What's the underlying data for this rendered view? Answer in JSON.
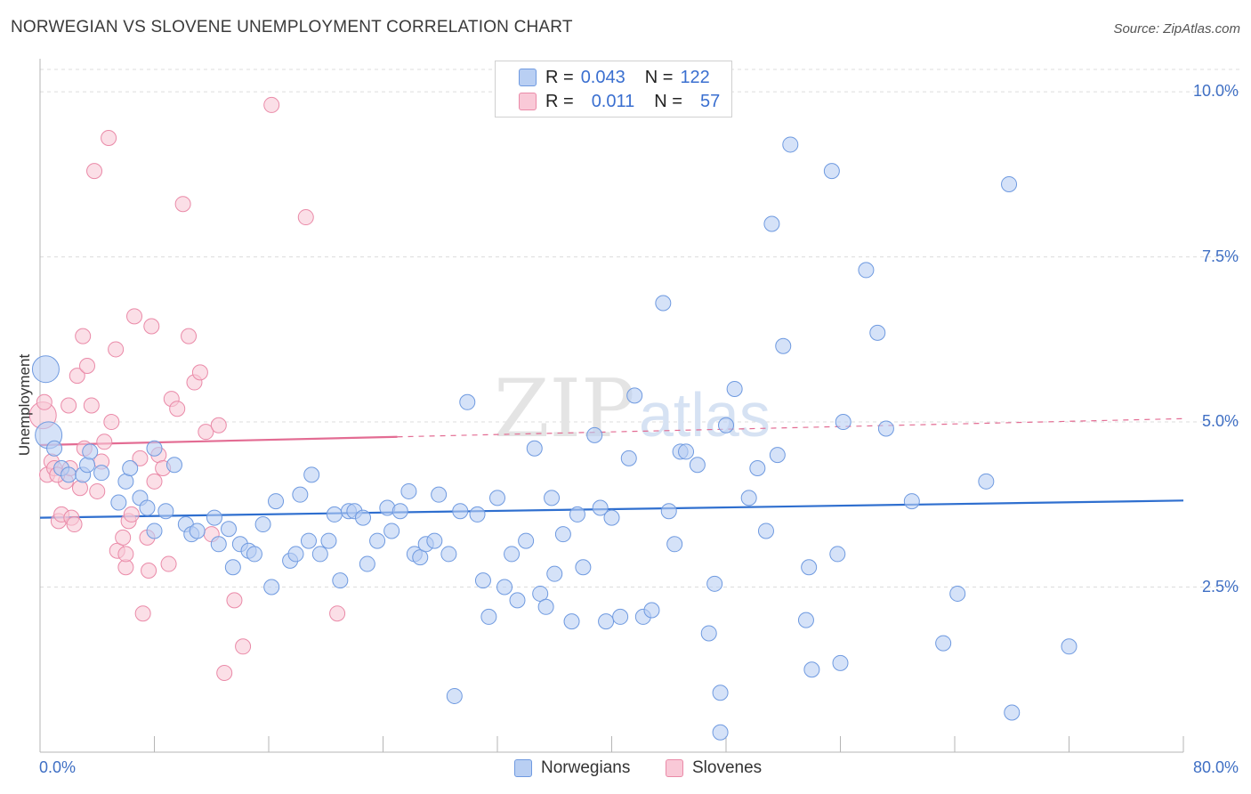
{
  "title": "NORWEGIAN VS SLOVENE UNEMPLOYMENT CORRELATION CHART",
  "source": "Source: ZipAtlas.com",
  "watermark": "ZIPatlas",
  "legend_top": {
    "rows": [
      {
        "r_label": "R =",
        "r_value": "0.043",
        "n_label": "N =",
        "n_value": "122",
        "color": "#6f9ae0"
      },
      {
        "r_label": "R =",
        "r_value": "0.011",
        "n_label": "N =",
        "n_value": "57",
        "color": "#ea8aa8"
      }
    ]
  },
  "colors": {
    "norwegians_fill": "#b9cff3",
    "norwegians_stroke": "#6f9ae0",
    "norwegians_line": "#2f6fcf",
    "slovenes_fill": "#f9c9d7",
    "slovenes_stroke": "#ea8aa8",
    "slovenes_line": "#e36c93",
    "tick_label": "#3f6fc4"
  },
  "chart_data": {
    "type": "scatter",
    "title": "NORWEGIAN VS SLOVENE UNEMPLOYMENT CORRELATION CHART",
    "xlabel": "",
    "ylabel": "Unemployment",
    "xlim": [
      0,
      80
    ],
    "ylim": [
      0,
      10.5
    ],
    "x_tick_labels": [
      "0.0%",
      "80.0%"
    ],
    "y_ticks": [
      2.5,
      5.0,
      7.5,
      10.0
    ],
    "y_tick_labels": [
      "2.5%",
      "5.0%",
      "7.5%",
      "10.0%"
    ],
    "grid": true,
    "legend_position": "bottom-center",
    "series": [
      {
        "name": "Norwegians",
        "r": 0.043,
        "n": 122,
        "trend": {
          "x": [
            0,
            80
          ],
          "y": [
            3.55,
            3.81
          ]
        },
        "points": [
          [
            0.4,
            5.8
          ],
          [
            0.6,
            4.8
          ],
          [
            1.0,
            4.6
          ],
          [
            1.5,
            4.3
          ],
          [
            2.0,
            4.2
          ],
          [
            3.0,
            4.2
          ],
          [
            3.3,
            4.35
          ],
          [
            3.5,
            4.55
          ],
          [
            4.3,
            4.23
          ],
          [
            5.5,
            3.78
          ],
          [
            6.0,
            4.1
          ],
          [
            6.3,
            4.3
          ],
          [
            7.0,
            3.85
          ],
          [
            7.5,
            3.7
          ],
          [
            8.0,
            3.35
          ],
          [
            8.8,
            3.65
          ],
          [
            9.4,
            4.35
          ],
          [
            10.2,
            3.45
          ],
          [
            10.6,
            3.3
          ],
          [
            11.0,
            3.35
          ],
          [
            12.2,
            3.55
          ],
          [
            12.5,
            3.15
          ],
          [
            13.2,
            3.38
          ],
          [
            13.5,
            2.8
          ],
          [
            14.0,
            3.15
          ],
          [
            14.6,
            3.05
          ],
          [
            15.0,
            3.0
          ],
          [
            15.6,
            3.45
          ],
          [
            16.2,
            2.5
          ],
          [
            16.5,
            3.8
          ],
          [
            17.5,
            2.9
          ],
          [
            17.9,
            3.0
          ],
          [
            18.2,
            3.9
          ],
          [
            18.8,
            3.2
          ],
          [
            19.0,
            4.2
          ],
          [
            19.6,
            3.0
          ],
          [
            20.2,
            3.2
          ],
          [
            20.6,
            3.6
          ],
          [
            21.0,
            2.6
          ],
          [
            21.6,
            3.65
          ],
          [
            22.0,
            3.65
          ],
          [
            22.6,
            3.55
          ],
          [
            22.9,
            2.85
          ],
          [
            23.6,
            3.2
          ],
          [
            24.3,
            3.7
          ],
          [
            24.6,
            3.35
          ],
          [
            25.2,
            3.65
          ],
          [
            25.8,
            3.95
          ],
          [
            26.2,
            3.0
          ],
          [
            26.6,
            2.95
          ],
          [
            27.0,
            3.15
          ],
          [
            27.6,
            3.2
          ],
          [
            27.9,
            3.9
          ],
          [
            28.6,
            3.0
          ],
          [
            29.0,
            0.85
          ],
          [
            29.4,
            3.65
          ],
          [
            29.9,
            5.3
          ],
          [
            30.6,
            3.6
          ],
          [
            31.0,
            2.6
          ],
          [
            31.4,
            2.05
          ],
          [
            32.0,
            3.85
          ],
          [
            32.5,
            2.5
          ],
          [
            33.0,
            3.0
          ],
          [
            33.4,
            2.3
          ],
          [
            34.0,
            3.2
          ],
          [
            34.6,
            4.6
          ],
          [
            35.0,
            2.4
          ],
          [
            35.4,
            2.2
          ],
          [
            35.8,
            3.85
          ],
          [
            36.0,
            2.7
          ],
          [
            36.6,
            3.3
          ],
          [
            37.2,
            1.98
          ],
          [
            37.6,
            3.6
          ],
          [
            38.0,
            2.8
          ],
          [
            38.8,
            4.8
          ],
          [
            39.2,
            3.7
          ],
          [
            39.6,
            1.98
          ],
          [
            40.0,
            3.55
          ],
          [
            40.6,
            2.05
          ],
          [
            41.2,
            4.45
          ],
          [
            41.6,
            5.4
          ],
          [
            42.2,
            2.05
          ],
          [
            42.8,
            2.15
          ],
          [
            43.6,
            6.8
          ],
          [
            44.0,
            3.65
          ],
          [
            44.4,
            3.15
          ],
          [
            44.8,
            4.55
          ],
          [
            45.2,
            4.55
          ],
          [
            46.0,
            4.35
          ],
          [
            46.8,
            1.8
          ],
          [
            47.2,
            2.55
          ],
          [
            47.6,
            0.9
          ],
          [
            47.6,
            0.3
          ],
          [
            48.0,
            4.95
          ],
          [
            48.6,
            5.5
          ],
          [
            49.6,
            3.85
          ],
          [
            50.2,
            4.3
          ],
          [
            50.8,
            3.35
          ],
          [
            51.2,
            8.0
          ],
          [
            51.6,
            4.5
          ],
          [
            52.0,
            6.15
          ],
          [
            52.5,
            9.2
          ],
          [
            53.6,
            2.0
          ],
          [
            53.8,
            2.8
          ],
          [
            54.0,
            1.25
          ],
          [
            55.4,
            8.8
          ],
          [
            55.8,
            3.0
          ],
          [
            56.0,
            1.35
          ],
          [
            56.2,
            5.0
          ],
          [
            57.8,
            7.3
          ],
          [
            58.6,
            6.35
          ],
          [
            59.2,
            4.9
          ],
          [
            61.0,
            3.8
          ],
          [
            63.2,
            1.65
          ],
          [
            64.2,
            2.4
          ],
          [
            66.2,
            4.1
          ],
          [
            67.8,
            8.6
          ],
          [
            68.0,
            0.6
          ],
          [
            72.0,
            1.6
          ],
          [
            8.0,
            4.6
          ]
        ]
      },
      {
        "name": "Slovenes",
        "r": 0.011,
        "n": 57,
        "trend": {
          "x": [
            0,
            80
          ],
          "y": [
            4.65,
            5.05
          ]
        },
        "points": [
          [
            0.2,
            5.1
          ],
          [
            0.5,
            4.2
          ],
          [
            0.8,
            4.4
          ],
          [
            1.0,
            4.3
          ],
          [
            1.3,
            3.5
          ],
          [
            1.5,
            3.6
          ],
          [
            1.8,
            4.1
          ],
          [
            2.0,
            5.25
          ],
          [
            2.2,
            3.55
          ],
          [
            2.4,
            3.45
          ],
          [
            2.6,
            5.7
          ],
          [
            2.8,
            4.0
          ],
          [
            3.0,
            6.3
          ],
          [
            3.3,
            5.85
          ],
          [
            3.6,
            5.25
          ],
          [
            3.8,
            8.8
          ],
          [
            4.0,
            3.95
          ],
          [
            4.3,
            4.4
          ],
          [
            4.5,
            4.7
          ],
          [
            4.8,
            9.3
          ],
          [
            5.0,
            5.0
          ],
          [
            5.3,
            6.1
          ],
          [
            5.4,
            3.05
          ],
          [
            5.8,
            3.25
          ],
          [
            6.0,
            2.8
          ],
          [
            6.2,
            3.5
          ],
          [
            6.4,
            3.6
          ],
          [
            6.6,
            6.6
          ],
          [
            7.0,
            4.45
          ],
          [
            7.2,
            2.1
          ],
          [
            7.5,
            3.25
          ],
          [
            7.6,
            2.75
          ],
          [
            7.8,
            6.45
          ],
          [
            8.0,
            4.1
          ],
          [
            8.3,
            4.5
          ],
          [
            8.6,
            4.3
          ],
          [
            9.0,
            2.85
          ],
          [
            9.2,
            5.35
          ],
          [
            9.6,
            5.2
          ],
          [
            10.0,
            8.3
          ],
          [
            10.4,
            6.3
          ],
          [
            10.8,
            5.6
          ],
          [
            11.2,
            5.75
          ],
          [
            11.6,
            4.85
          ],
          [
            12.0,
            3.3
          ],
          [
            12.5,
            4.95
          ],
          [
            12.9,
            1.2
          ],
          [
            13.6,
            2.3
          ],
          [
            14.2,
            1.6
          ],
          [
            16.2,
            9.8
          ],
          [
            18.6,
            8.1
          ],
          [
            20.8,
            2.1
          ],
          [
            3.1,
            4.6
          ],
          [
            1.2,
            4.2
          ],
          [
            2.1,
            4.3
          ],
          [
            0.3,
            5.3
          ],
          [
            6.0,
            3.0
          ]
        ]
      }
    ]
  },
  "legend_bottom": {
    "items": [
      {
        "label": "Norwegians"
      },
      {
        "label": "Slovenes"
      }
    ]
  },
  "axes": {
    "y_label": "Unemployment",
    "x_min_label": "0.0%",
    "x_max_label": "80.0%"
  }
}
